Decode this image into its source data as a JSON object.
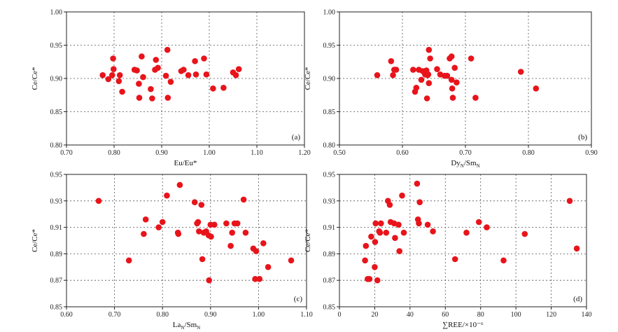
{
  "chart_data": [
    {
      "type": "scatter",
      "panel_label": "(a)",
      "xlabel": "Eu/Eu*",
      "ylabel": "Ce/Ce*",
      "xlim": [
        0.7,
        1.2
      ],
      "ylim": [
        0.8,
        1.0
      ],
      "xticks": [
        "0.70",
        "0.80",
        "0.90",
        "1.00",
        "1.10",
        "1.20"
      ],
      "yticks": [
        "0.80",
        "0.85",
        "0.90",
        "0.95",
        "1.00"
      ],
      "xtick_values": [
        0.7,
        0.8,
        0.9,
        1.0,
        1.1,
        1.2
      ],
      "ytick_values": [
        0.8,
        0.85,
        0.9,
        0.95,
        1.0
      ],
      "grid": true,
      "marker_color": "#e8141b",
      "points": [
        [
          0.776,
          0.905
        ],
        [
          0.788,
          0.899
        ],
        [
          0.798,
          0.93
        ],
        [
          0.796,
          0.905
        ],
        [
          0.799,
          0.914
        ],
        [
          0.81,
          0.896
        ],
        [
          0.812,
          0.905
        ],
        [
          0.817,
          0.88
        ],
        [
          0.843,
          0.913
        ],
        [
          0.848,
          0.912
        ],
        [
          0.852,
          0.892
        ],
        [
          0.853,
          0.871
        ],
        [
          0.858,
          0.933
        ],
        [
          0.861,
          0.902
        ],
        [
          0.877,
          0.884
        ],
        [
          0.88,
          0.87
        ],
        [
          0.886,
          0.913
        ],
        [
          0.888,
          0.928
        ],
        [
          0.892,
          0.916
        ],
        [
          0.909,
          0.904
        ],
        [
          0.912,
          0.943
        ],
        [
          0.913,
          0.871
        ],
        [
          0.919,
          0.895
        ],
        [
          0.941,
          0.911
        ],
        [
          0.946,
          0.913
        ],
        [
          0.956,
          0.905
        ],
        [
          0.97,
          0.926
        ],
        [
          0.972,
          0.906
        ],
        [
          0.989,
          0.93
        ],
        [
          0.994,
          0.906
        ],
        [
          1.008,
          0.885
        ],
        [
          1.03,
          0.886
        ],
        [
          1.05,
          0.909
        ],
        [
          1.056,
          0.905
        ],
        [
          1.062,
          0.914
        ]
      ]
    },
    {
      "type": "scatter",
      "panel_label": "(b)",
      "xlabel": "Dyₙ/Smₙ",
      "xlabel_main": "Dy",
      "xlabel_sub1": "N",
      "xlabel_mid": "/Sm",
      "xlabel_sub2": "N",
      "ylabel": "Ce/Ce*",
      "xlim": [
        0.5,
        0.9
      ],
      "ylim": [
        0.8,
        1.0
      ],
      "xticks": [
        "0.50",
        "0.60",
        "0.70",
        "0.80",
        "0.90"
      ],
      "yticks": [
        "0.80",
        "0.85",
        "0.90",
        "0.95",
        "1.00"
      ],
      "xtick_values": [
        0.5,
        0.6,
        0.7,
        0.8,
        0.9
      ],
      "ytick_values": [
        0.8,
        0.85,
        0.9,
        0.95,
        1.0
      ],
      "grid": true,
      "marker_color": "#e8141b",
      "points": [
        [
          0.56,
          0.905
        ],
        [
          0.582,
          0.926
        ],
        [
          0.585,
          0.905
        ],
        [
          0.587,
          0.913
        ],
        [
          0.59,
          0.913
        ],
        [
          0.617,
          0.913
        ],
        [
          0.62,
          0.88
        ],
        [
          0.622,
          0.886
        ],
        [
          0.626,
          0.913
        ],
        [
          0.63,
          0.898
        ],
        [
          0.632,
          0.911
        ],
        [
          0.636,
          0.906
        ],
        [
          0.638,
          0.912
        ],
        [
          0.639,
          0.87
        ],
        [
          0.64,
          0.905
        ],
        [
          0.641,
          0.906
        ],
        [
          0.642,
          0.893
        ],
        [
          0.642,
          0.943
        ],
        [
          0.644,
          0.93
        ],
        [
          0.655,
          0.914
        ],
        [
          0.66,
          0.906
        ],
        [
          0.667,
          0.904
        ],
        [
          0.671,
          0.904
        ],
        [
          0.675,
          0.93
        ],
        [
          0.678,
          0.933
        ],
        [
          0.678,
          0.898
        ],
        [
          0.679,
          0.885
        ],
        [
          0.68,
          0.871
        ],
        [
          0.683,
          0.916
        ],
        [
          0.686,
          0.894
        ],
        [
          0.709,
          0.93
        ],
        [
          0.716,
          0.871
        ],
        [
          0.788,
          0.91
        ],
        [
          0.812,
          0.885
        ]
      ]
    },
    {
      "type": "scatter",
      "panel_label": "(c)",
      "xlabel": "Laₙ/Smₙ",
      "xlabel_main": "La",
      "xlabel_sub1": "N",
      "xlabel_mid": "/Sm",
      "xlabel_sub2": "N",
      "ylabel": "Ce/Ce*",
      "xlim": [
        0.6,
        1.1
      ],
      "ylim": [
        0.85,
        0.95
      ],
      "xticks": [
        "0.60",
        "0.70",
        "0.80",
        "0.90",
        "1.00",
        "1.10"
      ],
      "yticks": [
        "0.85",
        "0.87",
        "0.89",
        "0.91",
        "0.93",
        "0.95"
      ],
      "xtick_values": [
        0.6,
        0.7,
        0.8,
        0.9,
        1.0,
        1.1
      ],
      "ytick_values": [
        0.85,
        0.87,
        0.89,
        0.91,
        0.93,
        0.95
      ],
      "grid": true,
      "marker_color": "#e8141b",
      "points": [
        [
          0.667,
          0.93
        ],
        [
          0.73,
          0.885
        ],
        [
          0.761,
          0.905
        ],
        [
          0.765,
          0.916
        ],
        [
          0.792,
          0.91
        ],
        [
          0.8,
          0.914
        ],
        [
          0.809,
          0.934
        ],
        [
          0.832,
          0.906
        ],
        [
          0.833,
          0.905
        ],
        [
          0.836,
          0.942
        ],
        [
          0.867,
          0.929
        ],
        [
          0.872,
          0.913
        ],
        [
          0.874,
          0.914
        ],
        [
          0.876,
          0.907
        ],
        [
          0.881,
          0.927
        ],
        [
          0.883,
          0.886
        ],
        [
          0.886,
          0.906
        ],
        [
          0.891,
          0.907
        ],
        [
          0.896,
          0.904
        ],
        [
          0.897,
          0.87
        ],
        [
          0.9,
          0.912
        ],
        [
          0.901,
          0.903
        ],
        [
          0.908,
          0.912
        ],
        [
          0.933,
          0.913
        ],
        [
          0.942,
          0.896
        ],
        [
          0.945,
          0.906
        ],
        [
          0.95,
          0.913
        ],
        [
          0.956,
          0.913
        ],
        [
          0.969,
          0.931
        ],
        [
          0.973,
          0.906
        ],
        [
          0.989,
          0.894
        ],
        [
          0.993,
          0.871
        ],
        [
          0.995,
          0.892
        ],
        [
          1.002,
          0.871
        ],
        [
          1.01,
          0.898
        ],
        [
          1.02,
          0.88
        ],
        [
          1.068,
          0.885
        ]
      ]
    },
    {
      "type": "scatter",
      "panel_label": "(d)",
      "xlabel": "∑REE/×10⁻⁶",
      "ylabel": "Ce/Ce*",
      "xlim": [
        0,
        140
      ],
      "ylim": [
        0.85,
        0.95
      ],
      "xticks": [
        "0",
        "20",
        "40",
        "60",
        "80",
        "100",
        "120",
        "140"
      ],
      "yticks": [
        "0.85",
        "0.87",
        "0.89",
        "0.91",
        "0.93",
        "0.95"
      ],
      "xtick_values": [
        0,
        20,
        40,
        60,
        80,
        100,
        120,
        140
      ],
      "ytick_values": [
        0.85,
        0.87,
        0.89,
        0.91,
        0.93,
        0.95
      ],
      "grid": true,
      "marker_color": "#e8141b",
      "points": [
        [
          14.5,
          0.885
        ],
        [
          15.0,
          0.896
        ],
        [
          16.0,
          0.871
        ],
        [
          17.0,
          0.871
        ],
        [
          18.0,
          0.903
        ],
        [
          20.0,
          0.88
        ],
        [
          20.2,
          0.899
        ],
        [
          20.5,
          0.913
        ],
        [
          21.5,
          0.87
        ],
        [
          22.5,
          0.907
        ],
        [
          23.0,
          0.906
        ],
        [
          23.5,
          0.913
        ],
        [
          26.5,
          0.906
        ],
        [
          27.5,
          0.93
        ],
        [
          28.5,
          0.927
        ],
        [
          29.0,
          0.914
        ],
        [
          31.0,
          0.913
        ],
        [
          31.5,
          0.902
        ],
        [
          33.5,
          0.912
        ],
        [
          34.0,
          0.892
        ],
        [
          35.5,
          0.934
        ],
        [
          36.5,
          0.906
        ],
        [
          44.0,
          0.943
        ],
        [
          44.5,
          0.916
        ],
        [
          45.0,
          0.913
        ],
        [
          45.5,
          0.929
        ],
        [
          50.0,
          0.912
        ],
        [
          53.0,
          0.907
        ],
        [
          65.5,
          0.886
        ],
        [
          72.0,
          0.906
        ],
        [
          79.0,
          0.914
        ],
        [
          83.5,
          0.91
        ],
        [
          93.0,
          0.885
        ],
        [
          105.0,
          0.905
        ],
        [
          130.5,
          0.93
        ],
        [
          134.5,
          0.894
        ]
      ]
    }
  ]
}
